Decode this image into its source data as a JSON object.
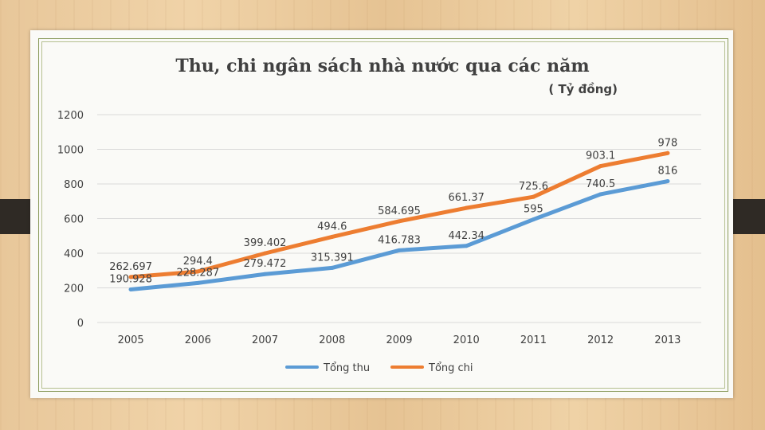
{
  "chart_data": {
    "type": "line",
    "title": "Thu, chi ngân sách nhà nước qua các năm",
    "subtitle": "( Tỷ đồng)",
    "categories": [
      "2005",
      "2006",
      "2007",
      "2008",
      "2009",
      "2010",
      "2011",
      "2012",
      "2013"
    ],
    "ylim": [
      0,
      1200
    ],
    "yticks": [
      "0",
      "200",
      "400",
      "600",
      "800",
      "1000",
      "1200"
    ],
    "grid": true,
    "legend": "bottom",
    "series": [
      {
        "name": "Tổng thu",
        "color": "#5b9bd5",
        "values": [
          190.928,
          228.287,
          279.472,
          315.391,
          416.783,
          442.34,
          595,
          740.5,
          816
        ],
        "labels": [
          "190.928",
          "228.287",
          "279.472",
          "315.391",
          "416.783",
          "442.34",
          "595",
          "740.5",
          "816"
        ]
      },
      {
        "name": "Tổng chi",
        "color": "#ed7d31",
        "values": [
          262.697,
          294.4,
          399.402,
          494.6,
          584.695,
          661.37,
          725.6,
          903.1,
          978
        ],
        "labels": [
          "262.697",
          "294.4",
          "399.402",
          "494.6",
          "584.695",
          "661.37",
          "725.6",
          "903.1",
          "978"
        ]
      }
    ]
  }
}
